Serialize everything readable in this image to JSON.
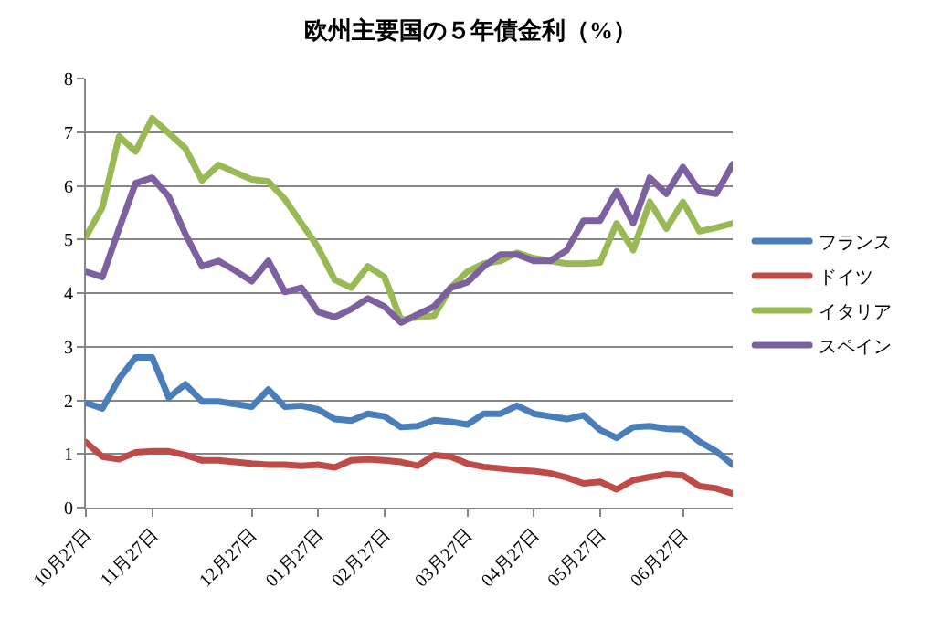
{
  "chart_data": {
    "type": "line",
    "title": "欧州主要国の５年債金利（%）",
    "categories": [
      "10月27日",
      null,
      null,
      null,
      "11月27日",
      null,
      null,
      null,
      null,
      null,
      "12月27日",
      null,
      null,
      null,
      "01月27日",
      null,
      null,
      null,
      "02月27日",
      null,
      null,
      null,
      null,
      "03月27日",
      null,
      null,
      null,
      "04月27日",
      null,
      null,
      null,
      "05月27日",
      null,
      null,
      null,
      null,
      "06月27日",
      null,
      null,
      null
    ],
    "series": [
      {
        "name": "フランス",
        "color": "#4a7ebb",
        "values": [
          1.95,
          1.85,
          2.4,
          2.8,
          2.8,
          2.05,
          2.3,
          1.98,
          1.98,
          1.93,
          1.88,
          2.2,
          1.88,
          1.9,
          1.83,
          1.65,
          1.62,
          1.75,
          1.7,
          1.5,
          1.52,
          1.63,
          1.6,
          1.55,
          1.75,
          1.75,
          1.9,
          1.75,
          1.7,
          1.65,
          1.72,
          1.45,
          1.3,
          1.5,
          1.52,
          1.47,
          1.46,
          1.23,
          1.05,
          0.8
        ]
      },
      {
        "name": "ドイツ",
        "color": "#be4b48",
        "values": [
          1.22,
          0.95,
          0.9,
          1.03,
          1.05,
          1.05,
          0.98,
          0.88,
          0.88,
          0.85,
          0.82,
          0.8,
          0.8,
          0.78,
          0.8,
          0.75,
          0.88,
          0.9,
          0.88,
          0.85,
          0.78,
          0.98,
          0.95,
          0.82,
          0.76,
          0.73,
          0.7,
          0.68,
          0.64,
          0.56,
          0.45,
          0.48,
          0.34,
          0.51,
          0.57,
          0.62,
          0.6,
          0.4,
          0.36,
          0.26
        ]
      },
      {
        "name": "イタリア",
        "color": "#98b954",
        "values": [
          5.05,
          5.6,
          6.92,
          6.64,
          7.26,
          6.98,
          6.7,
          6.1,
          6.39,
          6.25,
          6.12,
          6.08,
          5.75,
          5.3,
          4.85,
          4.25,
          4.1,
          4.5,
          4.3,
          3.5,
          3.55,
          3.58,
          4.1,
          4.4,
          4.55,
          4.6,
          4.75,
          4.65,
          4.6,
          4.55,
          4.55,
          4.57,
          5.3,
          4.8,
          5.7,
          5.2,
          5.7,
          5.15,
          5.22,
          5.3
        ]
      },
      {
        "name": "スペイン",
        "color": "#7d60a0",
        "values": [
          4.4,
          4.3,
          5.2,
          6.05,
          6.15,
          5.8,
          5.1,
          4.5,
          4.6,
          4.42,
          4.22,
          4.6,
          4.02,
          4.1,
          3.65,
          3.55,
          3.7,
          3.9,
          3.75,
          3.45,
          3.6,
          3.75,
          4.1,
          4.2,
          4.5,
          4.72,
          4.72,
          4.6,
          4.6,
          4.8,
          5.35,
          5.35,
          5.9,
          5.3,
          6.15,
          5.85,
          6.35,
          5.9,
          5.85,
          6.4
        ]
      }
    ],
    "ylim": [
      0,
      8
    ],
    "yticks": [
      0,
      1,
      2,
      3,
      4,
      5,
      6,
      7,
      8
    ],
    "grid": "y",
    "legend": "right",
    "line_style": "solid"
  }
}
